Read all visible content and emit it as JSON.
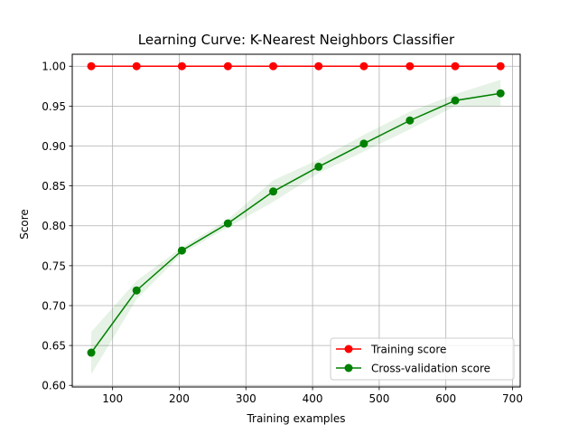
{
  "chart_data": {
    "type": "line",
    "title": "Learning Curve: K-Nearest Neighbors Classifier",
    "xlabel": "Training examples",
    "ylabel": "Score",
    "xlim": [
      39.5,
      711.5
    ],
    "ylim": [
      0.598,
      1.015
    ],
    "xticks": [
      100,
      200,
      300,
      400,
      500,
      600,
      700
    ],
    "yticks": [
      0.6,
      0.65,
      0.7,
      0.75,
      0.8,
      0.85,
      0.9,
      0.95,
      1.0
    ],
    "xtick_labels": [
      "100",
      "200",
      "300",
      "400",
      "500",
      "600",
      "700"
    ],
    "ytick_labels": [
      "0.60",
      "0.65",
      "0.70",
      "0.75",
      "0.80",
      "0.85",
      "0.90",
      "0.95",
      "1.00"
    ],
    "grid": true,
    "legend_position": "lower-right",
    "x": [
      68,
      136,
      204,
      273,
      341,
      409,
      477,
      546,
      614,
      682
    ],
    "series": [
      {
        "name": "Training score",
        "color": "#ff0000",
        "values": [
          1.0,
          1.0,
          1.0,
          1.0,
          1.0,
          1.0,
          1.0,
          1.0,
          1.0,
          1.0
        ],
        "band_lower": [
          1.0,
          1.0,
          1.0,
          1.0,
          1.0,
          1.0,
          1.0,
          1.0,
          1.0,
          1.0
        ],
        "band_upper": [
          1.0,
          1.0,
          1.0,
          1.0,
          1.0,
          1.0,
          1.0,
          1.0,
          1.0,
          1.0
        ]
      },
      {
        "name": "Cross-validation score",
        "color": "#008000",
        "values": [
          0.641,
          0.719,
          0.769,
          0.803,
          0.843,
          0.874,
          0.903,
          0.932,
          0.957,
          0.966
        ],
        "band_lower": [
          0.614,
          0.708,
          0.765,
          0.798,
          0.83,
          0.866,
          0.893,
          0.921,
          0.95,
          0.95
        ],
        "band_upper": [
          0.667,
          0.731,
          0.773,
          0.808,
          0.857,
          0.883,
          0.914,
          0.943,
          0.965,
          0.983
        ]
      }
    ]
  }
}
